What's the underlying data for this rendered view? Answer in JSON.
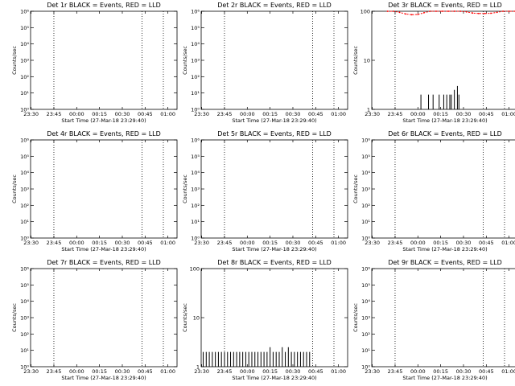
{
  "time_ticks": [
    "23:30",
    "23:45",
    "00:00",
    "00:15",
    "00:30",
    "00:45",
    "01:00"
  ],
  "dotted_lines": [
    "23:45",
    "00:43",
    "00:57"
  ],
  "chart_data": [
    {
      "type": "line",
      "title": "Det 1r BLACK = Events, RED = LLD",
      "xlabel": "Start Time (27-Mar-18 23:29:40)",
      "ylabel": "Counts/sec",
      "yscale": "log",
      "ylim": [
        1,
        1000000
      ],
      "y_ticks": [
        "10⁰",
        "10¹",
        "10²",
        "10³",
        "10⁴",
        "10⁵",
        "10⁶"
      ],
      "y_tick_values": [
        1,
        10,
        100,
        1000,
        10000,
        100000,
        1000000
      ],
      "xlim": [
        "23:29:40",
        "01:06:00"
      ],
      "series": []
    },
    {
      "type": "line",
      "title": "Det 2r BLACK = Events, RED = LLD",
      "xlabel": "Start Time (27-Mar-18 23:29:40)",
      "ylabel": "Counts/sec",
      "yscale": "log",
      "ylim": [
        1,
        1000000
      ],
      "y_ticks": [
        "10⁰",
        "10¹",
        "10²",
        "10³",
        "10⁴",
        "10⁵",
        "10⁶"
      ],
      "y_tick_values": [
        1,
        10,
        100,
        1000,
        10000,
        100000,
        1000000
      ],
      "xlim": [
        "23:29:40",
        "01:06:00"
      ],
      "series": []
    },
    {
      "type": "line",
      "title": "Det 3r BLACK = Events, RED = LLD",
      "xlabel": "Start Time (27-Mar-18 23:29:40)",
      "ylabel": "Counts/sec",
      "yscale": "log",
      "ylim": [
        1,
        100
      ],
      "y_ticks": [
        "1",
        "10",
        "100"
      ],
      "y_tick_values": [
        1,
        10,
        100
      ],
      "xlim": [
        "23:29:40",
        "01:06:00"
      ],
      "series": [
        {
          "color": "#ff0000",
          "x": [
            "23:40",
            "23:44",
            "23:48",
            "23:52",
            "23:56",
            "00:00",
            "00:04",
            "00:08",
            "00:12",
            "00:16",
            "00:20",
            "00:24",
            "00:28",
            "00:32",
            "00:36",
            "00:40",
            "00:44",
            "00:48",
            "00:52",
            "00:56",
            "01:00",
            "01:04"
          ],
          "y": [
            100,
            100,
            95,
            88,
            85,
            86,
            93,
            100,
            100,
            100,
            100,
            100,
            100,
            97,
            92,
            90,
            90,
            91,
            95,
            100,
            100,
            100
          ]
        },
        {
          "color": "#000000",
          "x": [
            "00:02",
            "00:07",
            "00:10",
            "00:14",
            "00:17",
            "00:19",
            "00:21",
            "00:22",
            "00:24",
            "00:26",
            "00:27"
          ],
          "y": [
            2,
            2,
            2,
            2,
            2,
            2,
            2,
            2,
            2.5,
            3,
            2
          ]
        }
      ]
    },
    {
      "type": "line",
      "title": "Det 4r BLACK = Events, RED = LLD",
      "xlabel": "Start Time (27-Mar-18 23:29:40)",
      "ylabel": "Counts/sec",
      "yscale": "log",
      "ylim": [
        1,
        1000000
      ],
      "y_ticks": [
        "10⁰",
        "10¹",
        "10²",
        "10³",
        "10⁴",
        "10⁵",
        "10⁶"
      ],
      "y_tick_values": [
        1,
        10,
        100,
        1000,
        10000,
        100000,
        1000000
      ],
      "xlim": [
        "23:29:40",
        "01:06:00"
      ],
      "series": []
    },
    {
      "type": "line",
      "title": "Det 5r BLACK = Events, RED = LLD",
      "xlabel": "Start Time (27-Mar-18 23:29:40)",
      "ylabel": "Counts/sec",
      "yscale": "log",
      "ylim": [
        1,
        1000000
      ],
      "y_ticks": [
        "10⁰",
        "10¹",
        "10²",
        "10³",
        "10⁴",
        "10⁵",
        "10⁶"
      ],
      "y_tick_values": [
        1,
        10,
        100,
        1000,
        10000,
        100000,
        1000000
      ],
      "xlim": [
        "23:29:40",
        "01:06:00"
      ],
      "series": []
    },
    {
      "type": "line",
      "title": "Det 6r BLACK = Events, RED = LLD",
      "xlabel": "Start Time (27-Mar-18 23:29:40)",
      "ylabel": "Counts/sec",
      "yscale": "log",
      "ylim": [
        1,
        1000000
      ],
      "y_ticks": [
        "10⁰",
        "10¹",
        "10²",
        "10³",
        "10⁴",
        "10⁵",
        "10⁶"
      ],
      "y_tick_values": [
        1,
        10,
        100,
        1000,
        10000,
        100000,
        1000000
      ],
      "xlim": [
        "23:29:40",
        "01:06:00"
      ],
      "series": []
    },
    {
      "type": "line",
      "title": "Det 7r BLACK = Events, RED = LLD",
      "xlabel": "Start Time (27-Mar-18 23:29:40)",
      "ylabel": "Counts/sec",
      "yscale": "log",
      "ylim": [
        1,
        1000000
      ],
      "y_ticks": [
        "10⁰",
        "10¹",
        "10²",
        "10³",
        "10⁴",
        "10⁵",
        "10⁶"
      ],
      "y_tick_values": [
        1,
        10,
        100,
        1000,
        10000,
        100000,
        1000000
      ],
      "xlim": [
        "23:29:40",
        "01:06:00"
      ],
      "series": []
    },
    {
      "type": "line",
      "title": "Det 8r BLACK = Events, RED = LLD",
      "xlabel": "Start Time (27-Mar-18 23:29:40)",
      "ylabel": "Counts/sec",
      "yscale": "log",
      "ylim": [
        1,
        100
      ],
      "y_ticks": [
        "1",
        "10",
        "100"
      ],
      "y_tick_values": [
        1,
        10,
        100
      ],
      "xlim": [
        "23:29:40",
        "01:06:00"
      ],
      "series": [
        {
          "color": "#000000",
          "x": [
            "23:31",
            "23:33",
            "23:35",
            "23:37",
            "23:39",
            "23:41",
            "23:43",
            "23:45",
            "23:47",
            "23:49",
            "23:51",
            "23:53",
            "23:55",
            "23:57",
            "23:59",
            "00:01",
            "00:03",
            "00:05",
            "00:07",
            "00:09",
            "00:11",
            "00:13",
            "00:15",
            "00:17",
            "00:19",
            "00:21",
            "00:23",
            "00:25",
            "00:27",
            "00:29",
            "00:31",
            "00:33",
            "00:35",
            "00:37",
            "00:39",
            "00:41"
          ],
          "y": [
            2,
            2,
            2,
            2,
            2,
            2,
            2,
            2,
            2,
            2,
            2,
            2,
            2,
            2,
            2,
            2,
            2,
            2,
            2,
            2,
            2,
            2,
            2.5,
            2,
            2,
            2,
            2.5,
            2,
            2.5,
            2,
            2,
            2,
            2,
            2,
            2,
            2
          ]
        }
      ]
    },
    {
      "type": "line",
      "title": "Det 9r BLACK = Events, RED = LLD",
      "xlabel": "Start Time (27-Mar-18 23:29:40)",
      "ylabel": "Counts/sec",
      "yscale": "log",
      "ylim": [
        1,
        1000000
      ],
      "y_ticks": [
        "10⁰",
        "10¹",
        "10²",
        "10³",
        "10⁴",
        "10⁵",
        "10⁶"
      ],
      "y_tick_values": [
        1,
        10,
        100,
        1000,
        10000,
        100000,
        1000000
      ],
      "xlim": [
        "23:29:40",
        "01:06:00"
      ],
      "series": []
    }
  ]
}
